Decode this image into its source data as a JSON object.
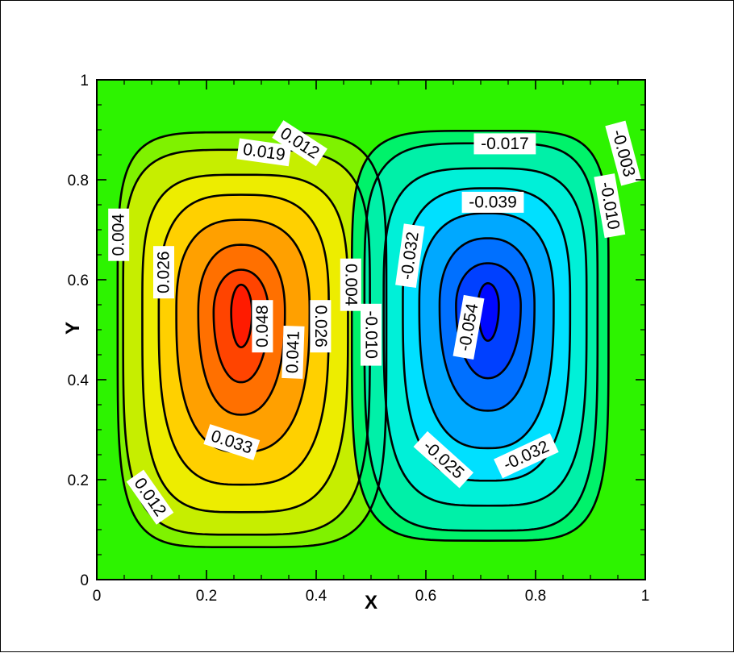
{
  "chart_data": {
    "type": "contour",
    "title": "",
    "xlabel": "X",
    "ylabel": "Y",
    "xlim": [
      0,
      1
    ],
    "ylim": [
      0,
      1
    ],
    "x_ticks": [
      "0",
      "0.2",
      "0.4",
      "0.6",
      "0.8",
      "1"
    ],
    "y_ticks": [
      "0",
      "0.2",
      "0.4",
      "0.6",
      "0.8",
      "1"
    ],
    "grid": false,
    "legend": "none",
    "colormap": {
      "background": "#2df300",
      "positive": [
        "#2df300",
        "#7ff200",
        "#c6ee00",
        "#eded00",
        "#ffd000",
        "#ffa000",
        "#ff7000",
        "#ff4400",
        "#ff1b00"
      ],
      "negative": [
        "#2df300",
        "#00f26a",
        "#00f0a8",
        "#00f0d8",
        "#00e0ff",
        "#00a8ff",
        "#0070ff",
        "#0040ff",
        "#0008ff"
      ]
    },
    "vortices": [
      {
        "sign": "positive",
        "center": [
          0.263,
          0.535
        ],
        "levels": [
          0.004,
          0.012,
          0.019,
          0.026,
          0.033,
          0.041,
          0.048
        ],
        "labels": [
          {
            "text": "0.004",
            "x": 0.04,
            "y": 0.69,
            "angle": -90
          },
          {
            "text": "0.012",
            "x": 0.37,
            "y": 0.873,
            "angle": 33
          },
          {
            "text": "0.019",
            "x": 0.305,
            "y": 0.855,
            "angle": 8
          },
          {
            "text": "0.026",
            "x": 0.122,
            "y": 0.615,
            "angle": -90
          },
          {
            "text": "0.048",
            "x": 0.302,
            "y": 0.507,
            "angle": -90
          },
          {
            "text": "0.041",
            "x": 0.358,
            "y": 0.455,
            "angle": -88
          },
          {
            "text": "0.026",
            "x": 0.408,
            "y": 0.507,
            "angle": 90
          },
          {
            "text": "0.033",
            "x": 0.246,
            "y": 0.275,
            "angle": 18
          },
          {
            "text": "0.012",
            "x": 0.097,
            "y": 0.165,
            "angle": 55
          },
          {
            "text": "0.004",
            "x": 0.463,
            "y": 0.59,
            "angle": 90
          }
        ]
      },
      {
        "sign": "negative",
        "center": [
          0.713,
          0.548
        ],
        "levels": [
          -0.003,
          -0.01,
          -0.017,
          -0.025,
          -0.032,
          -0.039,
          -0.054
        ],
        "labels": [
          {
            "text": "-0.003",
            "x": 0.96,
            "y": 0.853,
            "angle": 75
          },
          {
            "text": "-0.017",
            "x": 0.744,
            "y": 0.872,
            "angle": 0
          },
          {
            "text": "-0.010",
            "x": 0.935,
            "y": 0.748,
            "angle": 80
          },
          {
            "text": "-0.039",
            "x": 0.722,
            "y": 0.755,
            "angle": 0
          },
          {
            "text": "-0.032",
            "x": 0.571,
            "y": 0.648,
            "angle": -82
          },
          {
            "text": "-0.054",
            "x": 0.678,
            "y": 0.505,
            "angle": -80
          },
          {
            "text": "-0.010",
            "x": 0.5,
            "y": 0.49,
            "angle": 90
          },
          {
            "text": "-0.025",
            "x": 0.632,
            "y": 0.24,
            "angle": 42
          },
          {
            "text": "-0.032",
            "x": 0.783,
            "y": 0.248,
            "angle": -25
          }
        ]
      }
    ]
  }
}
